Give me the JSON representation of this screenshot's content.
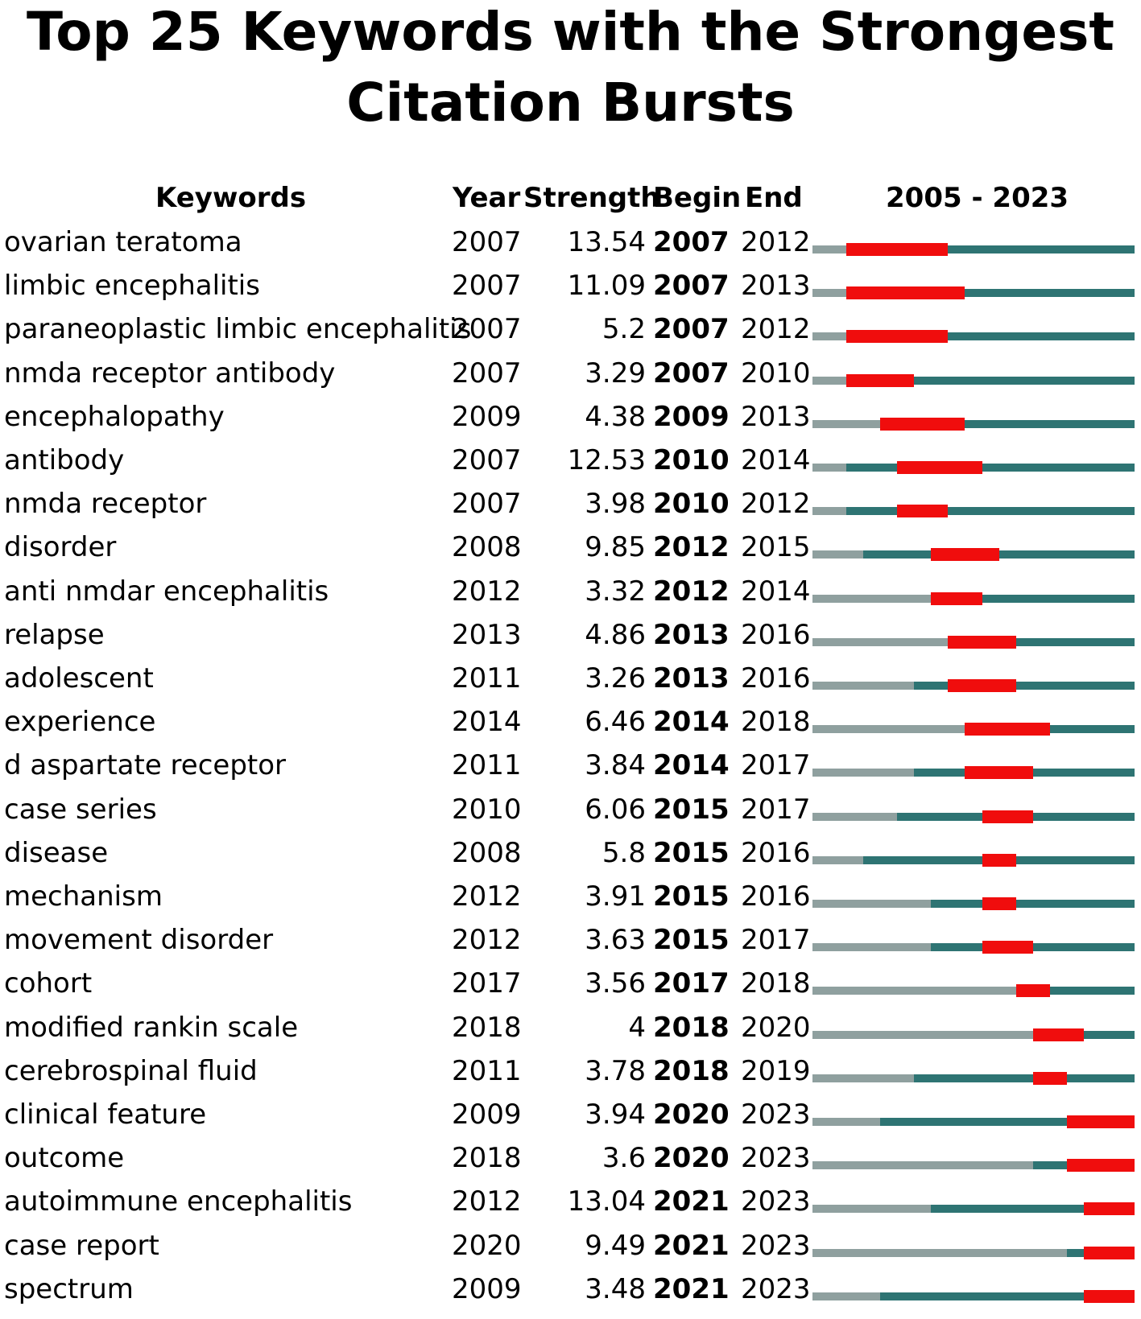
{
  "chart_data": {
    "type": "table",
    "title": [
      "Top 25 Keywords with the Strongest",
      "Citation Bursts"
    ],
    "columns": [
      "Keywords",
      "Year",
      "Strength",
      "Begin",
      "End",
      "2005 - 2023"
    ],
    "timeline": {
      "start": 2005,
      "end": 2023
    },
    "colors": {
      "pre_publication": "#8fa09f",
      "active": "#2e7473",
      "burst": "#f00d0d"
    },
    "rows": [
      {
        "keyword": "ovarian teratoma",
        "year": "2007",
        "strength": "13.54",
        "begin": "2007",
        "end": "2012"
      },
      {
        "keyword": "limbic encephalitis",
        "year": "2007",
        "strength": "11.09",
        "begin": "2007",
        "end": "2013"
      },
      {
        "keyword": "paraneoplastic limbic encephalitis",
        "year": "2007",
        "strength": "5.2",
        "begin": "2007",
        "end": "2012"
      },
      {
        "keyword": "nmda receptor antibody",
        "year": "2007",
        "strength": "3.29",
        "begin": "2007",
        "end": "2010"
      },
      {
        "keyword": "encephalopathy",
        "year": "2009",
        "strength": "4.38",
        "begin": "2009",
        "end": "2013"
      },
      {
        "keyword": "antibody",
        "year": "2007",
        "strength": "12.53",
        "begin": "2010",
        "end": "2014"
      },
      {
        "keyword": "nmda receptor",
        "year": "2007",
        "strength": "3.98",
        "begin": "2010",
        "end": "2012"
      },
      {
        "keyword": "disorder",
        "year": "2008",
        "strength": "9.85",
        "begin": "2012",
        "end": "2015"
      },
      {
        "keyword": "anti nmdar encephalitis",
        "year": "2012",
        "strength": "3.32",
        "begin": "2012",
        "end": "2014"
      },
      {
        "keyword": "relapse",
        "year": "2013",
        "strength": "4.86",
        "begin": "2013",
        "end": "2016"
      },
      {
        "keyword": "adolescent",
        "year": "2011",
        "strength": "3.26",
        "begin": "2013",
        "end": "2016"
      },
      {
        "keyword": "experience",
        "year": "2014",
        "strength": "6.46",
        "begin": "2014",
        "end": "2018"
      },
      {
        "keyword": "d aspartate receptor",
        "year": "2011",
        "strength": "3.84",
        "begin": "2014",
        "end": "2017"
      },
      {
        "keyword": "case series",
        "year": "2010",
        "strength": "6.06",
        "begin": "2015",
        "end": "2017"
      },
      {
        "keyword": "disease",
        "year": "2008",
        "strength": "5.8",
        "begin": "2015",
        "end": "2016"
      },
      {
        "keyword": "mechanism",
        "year": "2012",
        "strength": "3.91",
        "begin": "2015",
        "end": "2016"
      },
      {
        "keyword": "movement disorder",
        "year": "2012",
        "strength": "3.63",
        "begin": "2015",
        "end": "2017"
      },
      {
        "keyword": "cohort",
        "year": "2017",
        "strength": "3.56",
        "begin": "2017",
        "end": "2018"
      },
      {
        "keyword": "modified rankin scale",
        "year": "2018",
        "strength": "4",
        "begin": "2018",
        "end": "2020"
      },
      {
        "keyword": "cerebrospinal fluid",
        "year": "2011",
        "strength": "3.78",
        "begin": "2018",
        "end": "2019"
      },
      {
        "keyword": "clinical feature",
        "year": "2009",
        "strength": "3.94",
        "begin": "2020",
        "end": "2023"
      },
      {
        "keyword": "outcome",
        "year": "2018",
        "strength": "3.6",
        "begin": "2020",
        "end": "2023"
      },
      {
        "keyword": "autoimmune encephalitis",
        "year": "2012",
        "strength": "13.04",
        "begin": "2021",
        "end": "2023"
      },
      {
        "keyword": "case report",
        "year": "2020",
        "strength": "9.49",
        "begin": "2021",
        "end": "2023"
      },
      {
        "keyword": "spectrum",
        "year": "2009",
        "strength": "3.48",
        "begin": "2021",
        "end": "2023"
      }
    ]
  }
}
